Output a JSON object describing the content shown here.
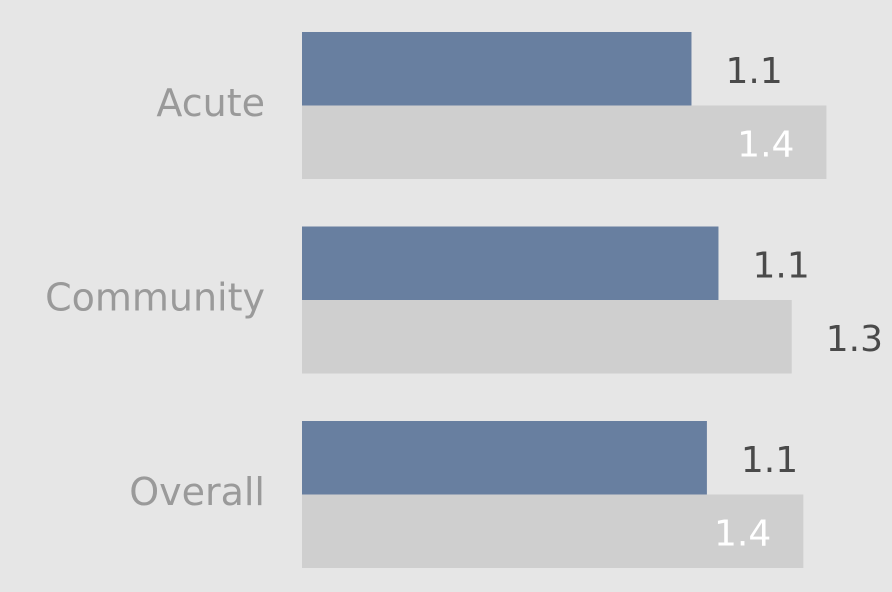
{
  "chart_data": {
    "type": "bar",
    "orientation": "horizontal",
    "categories": [
      "Acute",
      "Community",
      "Overall"
    ],
    "series": [
      {
        "color": "#687fa0",
        "values": [
          1.07,
          1.14,
          1.11
        ],
        "value_labels": [
          "1.1",
          "1.1",
          "1.1"
        ]
      },
      {
        "color": "#cfcfcf",
        "values": [
          1.42,
          1.33,
          1.36
        ],
        "value_labels": [
          "1.4",
          "1.3",
          "1.4"
        ]
      }
    ],
    "xlim": [
      0.06,
      1.59
    ]
  }
}
